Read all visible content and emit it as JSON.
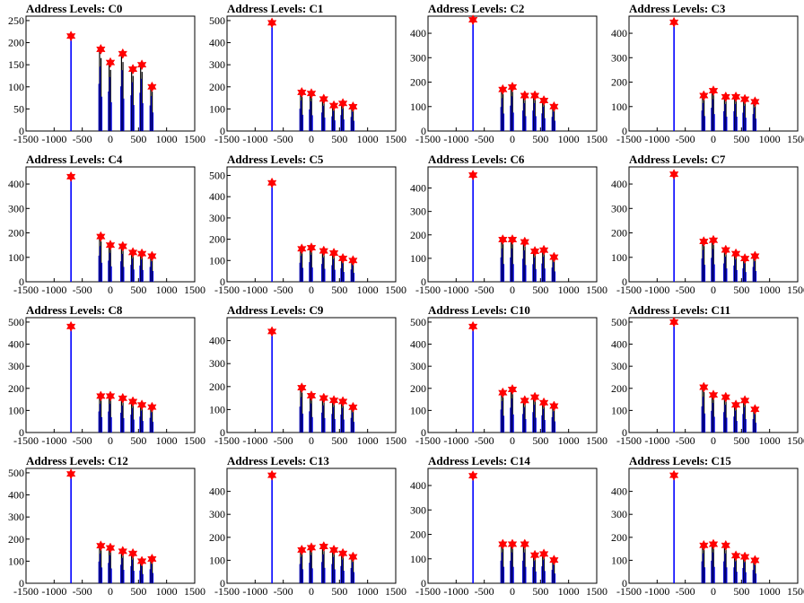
{
  "chart_data": [
    {
      "type": "bar",
      "title": "Address Levels: C0",
      "xlim": [
        -1500,
        1500
      ],
      "ylim": [
        0,
        260
      ],
      "yticks": [
        0,
        50,
        100,
        150,
        200,
        250
      ],
      "xticks": [
        -1500,
        -1000,
        -500,
        0,
        500,
        1000,
        1500
      ],
      "xtick_labels": [
        "-1500",
        "-1000",
        "-500",
        "0",
        "500",
        "1000",
        "1500"
      ],
      "peak_x": [
        -700,
        -170,
        0,
        220,
        400,
        560,
        740
      ],
      "peak_y": [
        215,
        185,
        155,
        175,
        140,
        150,
        100
      ]
    },
    {
      "type": "bar",
      "title": "Address Levels: C1",
      "xlim": [
        -1500,
        1500
      ],
      "ylim": [
        0,
        520
      ],
      "yticks": [
        0,
        100,
        200,
        300,
        400,
        500
      ],
      "xticks": [
        -1500,
        -1000,
        -500,
        0,
        500,
        1000,
        1500
      ],
      "xtick_labels": [
        "-1500",
        "-1000",
        "-500",
        "0",
        "500",
        "1000",
        "1500"
      ],
      "peak_x": [
        -700,
        -170,
        0,
        220,
        400,
        560,
        740
      ],
      "peak_y": [
        490,
        175,
        170,
        145,
        115,
        125,
        110
      ]
    },
    {
      "type": "bar",
      "title": "Address Levels: C2",
      "xlim": [
        -1500,
        1500
      ],
      "ylim": [
        0,
        470
      ],
      "yticks": [
        0,
        100,
        200,
        300,
        400
      ],
      "xticks": [
        -1500,
        -1000,
        -500,
        0,
        500,
        1000,
        1500
      ],
      "xtick_labels": [
        "-1500",
        "-1000",
        "-500",
        "0",
        "500",
        "1000",
        "1500"
      ],
      "peak_x": [
        -700,
        -170,
        0,
        220,
        400,
        560,
        740
      ],
      "peak_y": [
        455,
        170,
        180,
        145,
        145,
        125,
        100
      ]
    },
    {
      "type": "bar",
      "title": "Address Levels: C3",
      "xlim": [
        -1500,
        1500
      ],
      "ylim": [
        0,
        470
      ],
      "yticks": [
        0,
        100,
        200,
        300,
        400
      ],
      "xticks": [
        -1500,
        -1000,
        -500,
        0,
        500,
        1000,
        1500
      ],
      "xtick_labels": [
        "-1500",
        "-1000",
        "-500",
        "0",
        "500",
        "1000",
        "1500"
      ],
      "peak_x": [
        -700,
        -170,
        0,
        220,
        400,
        560,
        740
      ],
      "peak_y": [
        445,
        145,
        165,
        140,
        140,
        130,
        120
      ]
    },
    {
      "type": "bar",
      "title": "Address Levels: C4",
      "xlim": [
        -1500,
        1500
      ],
      "ylim": [
        0,
        470
      ],
      "yticks": [
        0,
        100,
        200,
        300,
        400
      ],
      "xticks": [
        -1500,
        -1000,
        -500,
        0,
        500,
        1000,
        1500
      ],
      "xtick_labels": [
        "-1500",
        "-1000",
        "-500",
        "0",
        "500",
        "1000",
        "1500"
      ],
      "peak_x": [
        -700,
        -170,
        0,
        220,
        400,
        560,
        740
      ],
      "peak_y": [
        430,
        185,
        150,
        145,
        120,
        115,
        105
      ]
    },
    {
      "type": "bar",
      "title": "Address Levels: C5",
      "xlim": [
        -1500,
        1500
      ],
      "ylim": [
        0,
        540
      ],
      "yticks": [
        0,
        100,
        200,
        300,
        400,
        500
      ],
      "xticks": [
        -1500,
        -1000,
        -500,
        0,
        500,
        1000,
        1500
      ],
      "xtick_labels": [
        "-1500",
        "-1000",
        "-500",
        "0",
        "500",
        "1000",
        "1500"
      ],
      "peak_x": [
        -700,
        -170,
        0,
        220,
        400,
        560,
        740
      ],
      "peak_y": [
        465,
        155,
        160,
        145,
        135,
        110,
        100
      ]
    },
    {
      "type": "bar",
      "title": "Address Levels: C6",
      "xlim": [
        -1500,
        1500
      ],
      "ylim": [
        0,
        490
      ],
      "yticks": [
        0,
        100,
        200,
        300,
        400
      ],
      "xticks": [
        -1500,
        -1000,
        -500,
        0,
        500,
        1000,
        1500
      ],
      "xtick_labels": [
        "-1500",
        "-1000",
        "-500",
        "0",
        "500",
        "1000",
        "1500"
      ],
      "peak_x": [
        -700,
        -170,
        0,
        220,
        400,
        560,
        740
      ],
      "peak_y": [
        455,
        180,
        180,
        170,
        130,
        135,
        105
      ]
    },
    {
      "type": "bar",
      "title": "Address Levels: C7",
      "xlim": [
        -1500,
        1500
      ],
      "ylim": [
        0,
        470
      ],
      "yticks": [
        0,
        100,
        200,
        300,
        400
      ],
      "xticks": [
        -1500,
        -1000,
        -500,
        0,
        500,
        1000,
        1500
      ],
      "xtick_labels": [
        "-1500",
        "-1000",
        "-500",
        "0",
        "500",
        "1000",
        "1500"
      ],
      "peak_x": [
        -700,
        -170,
        0,
        220,
        400,
        560,
        740
      ],
      "peak_y": [
        440,
        165,
        170,
        130,
        115,
        95,
        105
      ]
    },
    {
      "type": "bar",
      "title": "Address Levels: C8",
      "xlim": [
        -1500,
        1500
      ],
      "ylim": [
        0,
        520
      ],
      "yticks": [
        0,
        100,
        200,
        300,
        400,
        500
      ],
      "xticks": [
        -1500,
        -1000,
        -500,
        0,
        500,
        1000,
        1500
      ],
      "xtick_labels": [
        "-1500",
        "-1000",
        "-500",
        "0",
        "500",
        "1000",
        "1500"
      ],
      "peak_x": [
        -700,
        -170,
        0,
        220,
        400,
        560,
        740
      ],
      "peak_y": [
        480,
        165,
        165,
        155,
        140,
        125,
        115
      ]
    },
    {
      "type": "bar",
      "title": "Address Levels: C9",
      "xlim": [
        -1500,
        1500
      ],
      "ylim": [
        0,
        500
      ],
      "yticks": [
        0,
        100,
        200,
        300,
        400
      ],
      "xticks": [
        -1500,
        -1000,
        -500,
        0,
        500,
        1000,
        1500
      ],
      "xtick_labels": [
        "-1500",
        "-1000",
        "-500",
        "0",
        "500",
        "1000",
        "1500"
      ],
      "peak_x": [
        -700,
        -170,
        0,
        220,
        400,
        560,
        740
      ],
      "peak_y": [
        440,
        195,
        160,
        150,
        140,
        135,
        110
      ]
    },
    {
      "type": "bar",
      "title": "Address Levels: C10",
      "xlim": [
        -1500,
        1500
      ],
      "ylim": [
        0,
        520
      ],
      "yticks": [
        0,
        100,
        200,
        300,
        400,
        500
      ],
      "xticks": [
        -1500,
        -1000,
        -500,
        0,
        500,
        1000,
        1500
      ],
      "xtick_labels": [
        "-1500",
        "-1000",
        "-500",
        "0",
        "500",
        "1000",
        "1500"
      ],
      "peak_x": [
        -700,
        -170,
        0,
        220,
        400,
        560,
        740
      ],
      "peak_y": [
        480,
        180,
        195,
        145,
        160,
        135,
        120
      ]
    },
    {
      "type": "bar",
      "title": "Address Levels: C11",
      "xlim": [
        -1500,
        1500
      ],
      "ylim": [
        0,
        520
      ],
      "yticks": [
        0,
        100,
        200,
        300,
        400,
        500
      ],
      "xticks": [
        -1500,
        -1000,
        -500,
        0,
        500,
        1000,
        1500
      ],
      "xtick_labels": [
        "-1500",
        "-1000",
        "-500",
        "0",
        "500",
        "1000",
        "1500"
      ],
      "peak_x": [
        -700,
        -170,
        0,
        220,
        400,
        560,
        740
      ],
      "peak_y": [
        500,
        205,
        170,
        160,
        125,
        145,
        105
      ]
    },
    {
      "type": "bar",
      "title": "Address Levels: C12",
      "xlim": [
        -1500,
        1500
      ],
      "ylim": [
        0,
        520
      ],
      "yticks": [
        0,
        100,
        200,
        300,
        400,
        500
      ],
      "xticks": [
        -1500,
        -1000,
        -500,
        0,
        500,
        1000,
        1500
      ],
      "xtick_labels": [
        "-1500",
        "-1000",
        "-500",
        "0",
        "500",
        "1000",
        "1500"
      ],
      "peak_x": [
        -700,
        -170,
        0,
        220,
        400,
        560,
        740
      ],
      "peak_y": [
        495,
        170,
        160,
        145,
        135,
        100,
        110
      ]
    },
    {
      "type": "bar",
      "title": "Address Levels: C13",
      "xlim": [
        -1500,
        1500
      ],
      "ylim": [
        0,
        500
      ],
      "yticks": [
        0,
        100,
        200,
        300,
        400
      ],
      "xticks": [
        -1500,
        -1000,
        -500,
        0,
        500,
        1000,
        1500
      ],
      "xtick_labels": [
        "-1500",
        "-1000",
        "-500",
        "0",
        "500",
        "1000",
        "1500"
      ],
      "peak_x": [
        -700,
        -170,
        0,
        220,
        400,
        560,
        740
      ],
      "peak_y": [
        470,
        145,
        155,
        160,
        145,
        130,
        115
      ]
    },
    {
      "type": "bar",
      "title": "Address Levels: C14",
      "xlim": [
        -1500,
        1500
      ],
      "ylim": [
        0,
        470
      ],
      "yticks": [
        0,
        100,
        200,
        300,
        400
      ],
      "xticks": [
        -1500,
        -1000,
        -500,
        0,
        500,
        1000,
        1500
      ],
      "xtick_labels": [
        "-1500",
        "-1000",
        "-500",
        "0",
        "500",
        "1000",
        "1500"
      ],
      "peak_x": [
        -700,
        -170,
        0,
        220,
        400,
        560,
        740
      ],
      "peak_y": [
        440,
        160,
        160,
        160,
        115,
        120,
        95
      ]
    },
    {
      "type": "bar",
      "title": "Address Levels: C15",
      "xlim": [
        -1500,
        1500
      ],
      "ylim": [
        0,
        500
      ],
      "yticks": [
        0,
        100,
        200,
        300,
        400
      ],
      "xticks": [
        -1500,
        -1000,
        -500,
        0,
        500,
        1000,
        1500
      ],
      "xtick_labels": [
        "-1500",
        "-1000",
        "-500",
        "0",
        "500",
        "1000",
        "1500"
      ],
      "peak_x": [
        -700,
        -170,
        0,
        220,
        400,
        560,
        740
      ],
      "peak_y": [
        470,
        165,
        170,
        165,
        120,
        115,
        100
      ]
    }
  ],
  "colors": {
    "bar": "#0000ff",
    "spike": "#000000",
    "marker": "#ff0000",
    "axis": "#000000"
  }
}
